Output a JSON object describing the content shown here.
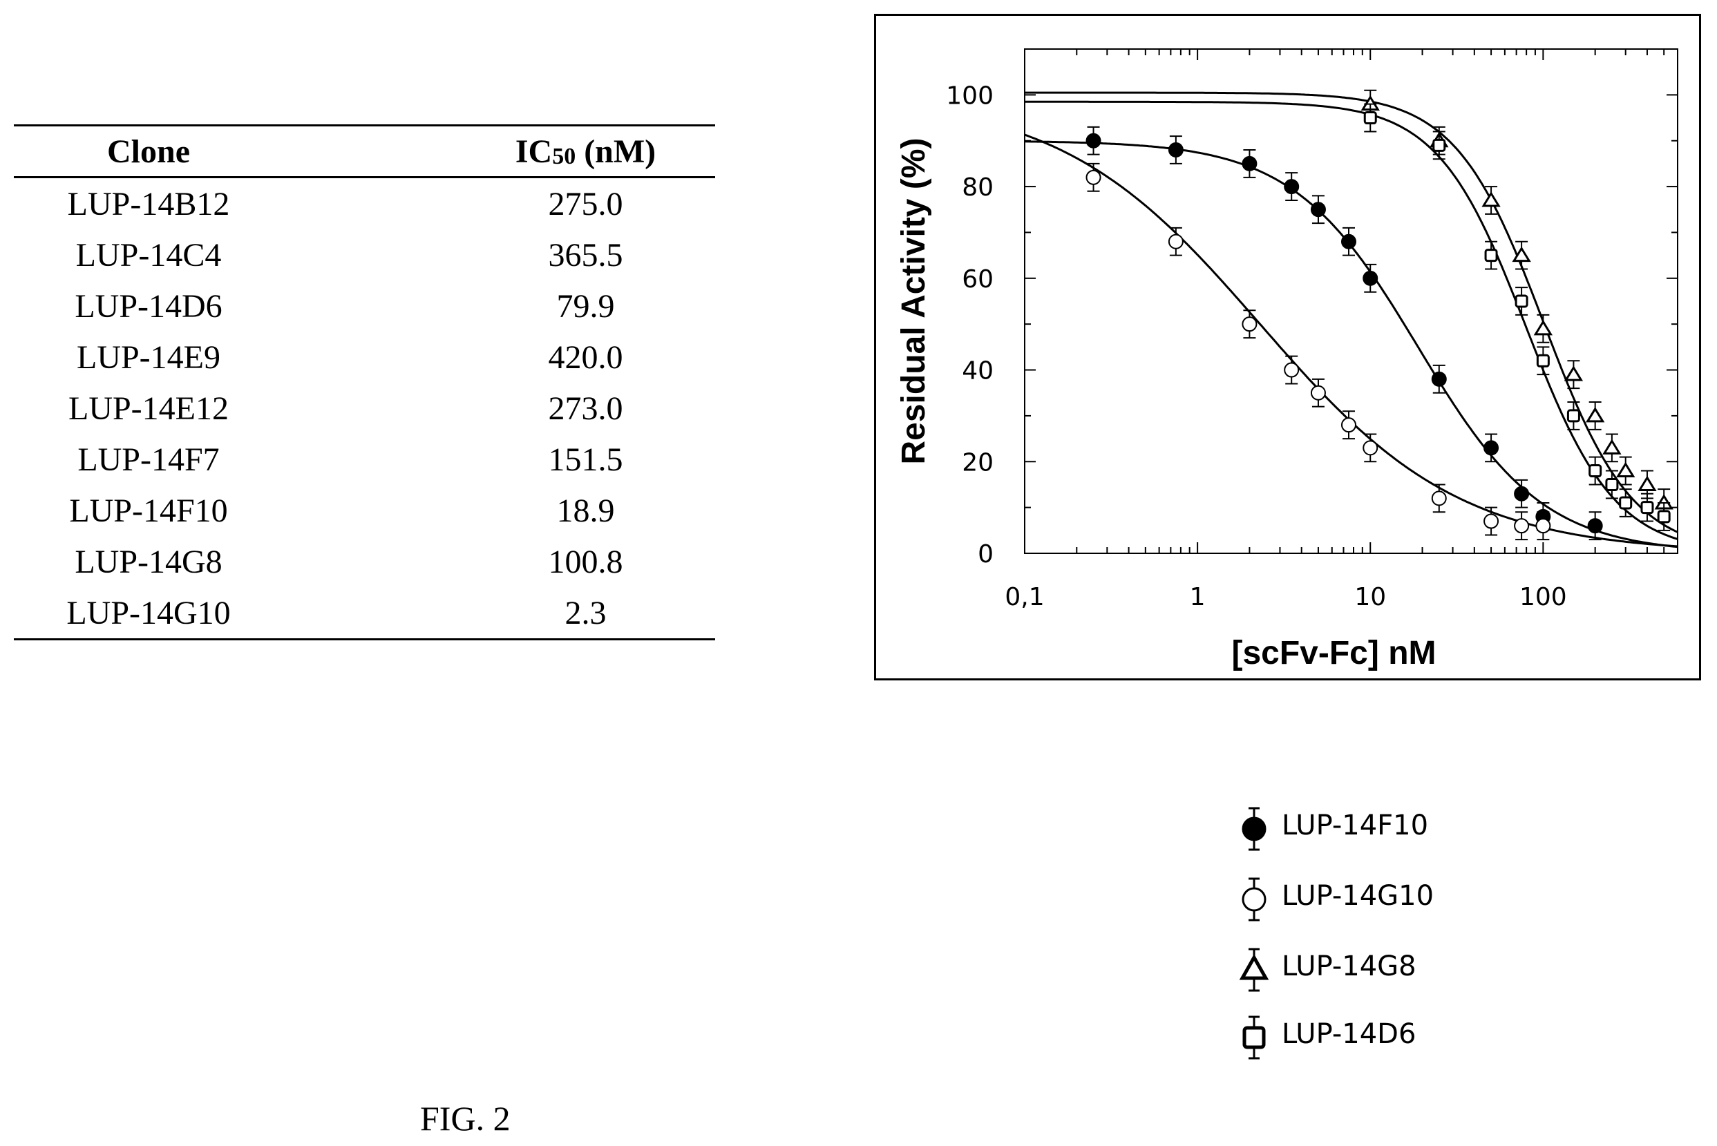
{
  "table": {
    "header_clone": "Clone",
    "header_ic50_main": "IC",
    "header_ic50_sub": "50",
    "header_ic50_unit": " (nM)",
    "rows": [
      {
        "clone": "LUP-14B12",
        "ic50": "275.0"
      },
      {
        "clone": "LUP-14C4",
        "ic50": "365.5"
      },
      {
        "clone": "LUP-14D6",
        "ic50": "79.9"
      },
      {
        "clone": "LUP-14E9",
        "ic50": "420.0"
      },
      {
        "clone": "LUP-14E12",
        "ic50": "273.0"
      },
      {
        "clone": "LUP-14F7",
        "ic50": "151.5"
      },
      {
        "clone": "LUP-14F10",
        "ic50": "18.9"
      },
      {
        "clone": "LUP-14G8",
        "ic50": "100.8"
      },
      {
        "clone": "LUP-14G10",
        "ic50": "2.3"
      }
    ]
  },
  "chart_data": {
    "type": "scatter",
    "x_scale": "log",
    "xlabel": "[scFv-Fc] nM",
    "ylabel": "Residual Activity (%)",
    "xlim": [
      0.1,
      600
    ],
    "ylim": [
      0,
      110
    ],
    "x_ticks": [
      0.1,
      1,
      10,
      100
    ],
    "x_tick_labels": [
      "0,1",
      "1",
      "10",
      "100"
    ],
    "y_ticks": [
      0,
      20,
      40,
      60,
      80,
      100
    ],
    "y_tick_labels": [
      "0",
      "20",
      "40",
      "60",
      "80",
      "100"
    ],
    "grid": false,
    "error_bar": 3,
    "series": [
      {
        "name": "LUP-14F10",
        "marker": "filled-circle",
        "top": 90,
        "ic50": 18.9,
        "hill": 1.2,
        "x": [
          0.25,
          0.75,
          2,
          3.5,
          5,
          7.5,
          10,
          25,
          50,
          75,
          100,
          200
        ],
        "y": [
          90,
          88,
          85,
          80,
          75,
          68,
          60,
          38,
          23,
          13,
          8,
          6
        ]
      },
      {
        "name": "LUP-14G10",
        "marker": "open-circle",
        "top": 100,
        "ic50": 2.3,
        "hill": 0.75,
        "x": [
          0.25,
          0.75,
          2,
          3.5,
          5,
          7.5,
          10,
          25,
          50,
          75,
          100
        ],
        "y": [
          82,
          68,
          50,
          40,
          35,
          28,
          23,
          12,
          7,
          6,
          6
        ]
      },
      {
        "name": "LUP-14G8",
        "marker": "open-triangle",
        "top": 100.5,
        "ic50": 100.8,
        "hill": 1.7,
        "x": [
          10,
          25,
          50,
          75,
          100,
          150,
          200,
          250,
          300,
          400,
          500
        ],
        "y": [
          98,
          90,
          77,
          65,
          49,
          39,
          30,
          23,
          18,
          15,
          11
        ]
      },
      {
        "name": "LUP-14D6",
        "marker": "open-square",
        "top": 98.5,
        "ic50": 79.9,
        "hill": 1.7,
        "x": [
          10,
          25,
          50,
          75,
          100,
          150,
          200,
          250,
          300,
          400,
          500
        ],
        "y": [
          95,
          89,
          65,
          55,
          42,
          30,
          18,
          15,
          11,
          10,
          8
        ]
      }
    ]
  },
  "legend": {
    "items": [
      {
        "label": "LUP-14F10",
        "marker": "filled-circle"
      },
      {
        "label": "LUP-14G10",
        "marker": "open-circle"
      },
      {
        "label": "LUP-14G8",
        "marker": "open-triangle"
      },
      {
        "label": "LUP-14D6",
        "marker": "open-square"
      }
    ]
  },
  "caption": "FIG. 2"
}
